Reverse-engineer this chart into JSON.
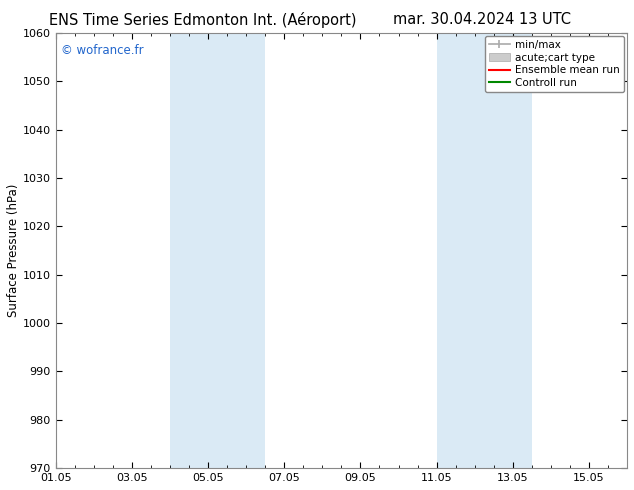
{
  "title_left": "ENS Time Series Edmonton Int. (Aéroport)",
  "title_right": "mar. 30.04.2024 13 UTC",
  "ylabel": "Surface Pressure (hPa)",
  "ylim": [
    970,
    1060
  ],
  "yticks": [
    970,
    980,
    990,
    1000,
    1010,
    1020,
    1030,
    1040,
    1050,
    1060
  ],
  "xlim": [
    0,
    15
  ],
  "xtick_positions": [
    0,
    2,
    4,
    6,
    8,
    10,
    12,
    14
  ],
  "xlabel_dates": [
    "01.05",
    "03.05",
    "05.05",
    "07.05",
    "09.05",
    "11.05",
    "13.05",
    "15.05"
  ],
  "shade_bands": [
    {
      "xstart": 3.0,
      "xend": 5.5
    },
    {
      "xstart": 10.0,
      "xend": 12.5
    }
  ],
  "shade_color": "#daeaf5",
  "watermark": "© wofrance.fr",
  "watermark_color": "#2266cc",
  "legend_labels": [
    "min/max",
    "acute;cart type",
    "Ensemble mean run",
    "Controll run"
  ],
  "legend_colors": [
    "#aaaaaa",
    "#cccccc",
    "#ff0000",
    "#008800"
  ],
  "bg_color": "#ffffff",
  "plot_bg_color": "#ffffff",
  "border_color": "#888888",
  "title_fontsize": 10.5,
  "tick_fontsize": 8,
  "ylabel_fontsize": 8.5,
  "legend_fontsize": 7.5
}
